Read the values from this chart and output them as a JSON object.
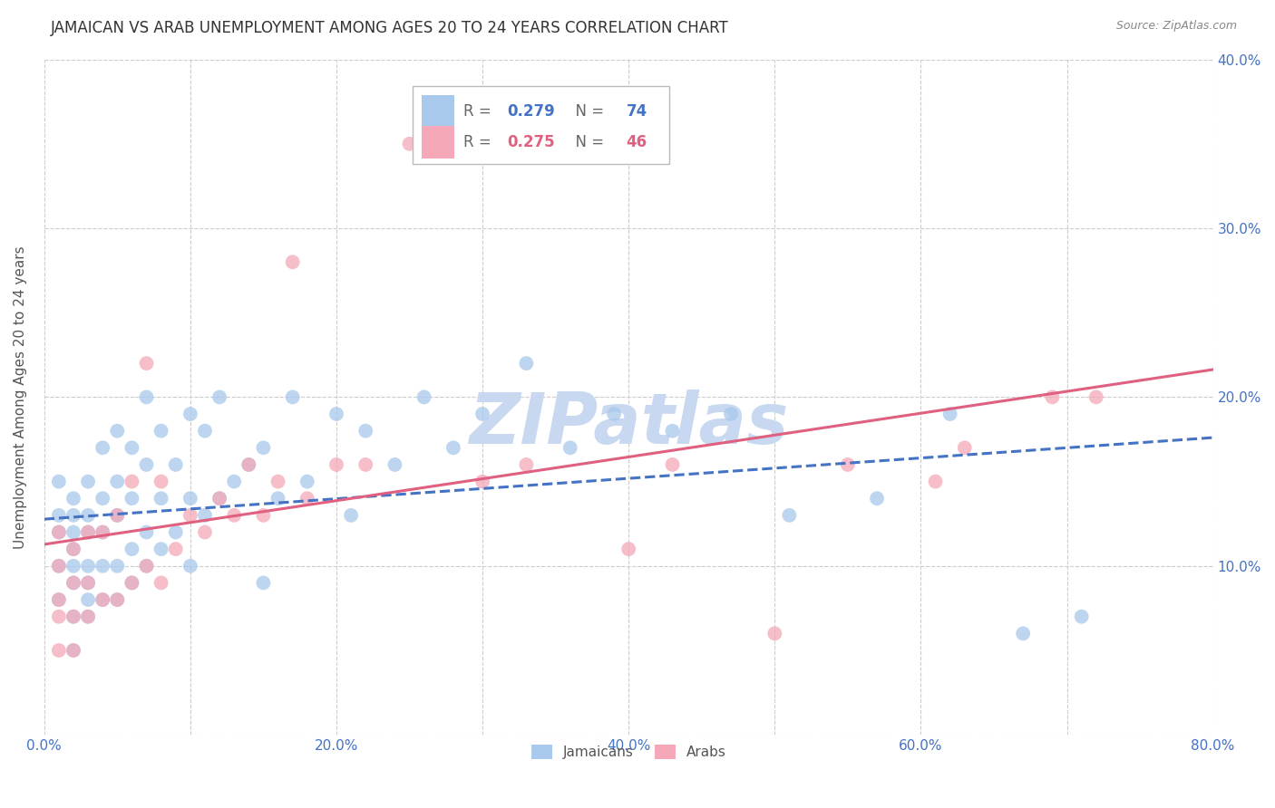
{
  "title": "JAMAICAN VS ARAB UNEMPLOYMENT AMONG AGES 20 TO 24 YEARS CORRELATION CHART",
  "source": "Source: ZipAtlas.com",
  "ylabel": "Unemployment Among Ages 20 to 24 years",
  "xlim": [
    0.0,
    0.8
  ],
  "ylim": [
    0.0,
    0.4
  ],
  "xticks": [
    0.0,
    0.1,
    0.2,
    0.3,
    0.4,
    0.5,
    0.6,
    0.7,
    0.8
  ],
  "yticks": [
    0.0,
    0.1,
    0.2,
    0.3,
    0.4
  ],
  "ytick_labels_right": [
    "",
    "10.0%",
    "20.0%",
    "30.0%",
    "40.0%"
  ],
  "xtick_labels": [
    "0.0%",
    "",
    "20.0%",
    "",
    "40.0%",
    "",
    "60.0%",
    "",
    "80.0%"
  ],
  "jamaican_color": "#A8C8EC",
  "arab_color": "#F4A8B8",
  "jamaican_line_color": "#4472C4",
  "arab_line_color": "#E06080",
  "R_jamaican": 0.279,
  "N_jamaican": 74,
  "R_arab": 0.275,
  "N_arab": 46,
  "watermark": "ZIPatlas",
  "watermark_color": "#C8D8F0",
  "background_color": "#FFFFFF",
  "grid_color": "#CCCCCC",
  "tick_label_color": "#4472C4",
  "jamaican_x": [
    0.01,
    0.01,
    0.01,
    0.01,
    0.01,
    0.02,
    0.02,
    0.02,
    0.02,
    0.02,
    0.02,
    0.02,
    0.02,
    0.03,
    0.03,
    0.03,
    0.03,
    0.03,
    0.03,
    0.03,
    0.04,
    0.04,
    0.04,
    0.04,
    0.04,
    0.05,
    0.05,
    0.05,
    0.05,
    0.05,
    0.06,
    0.06,
    0.06,
    0.06,
    0.07,
    0.07,
    0.07,
    0.07,
    0.08,
    0.08,
    0.08,
    0.09,
    0.09,
    0.1,
    0.1,
    0.1,
    0.11,
    0.11,
    0.12,
    0.12,
    0.13,
    0.14,
    0.15,
    0.15,
    0.16,
    0.17,
    0.18,
    0.2,
    0.21,
    0.22,
    0.24,
    0.26,
    0.28,
    0.3,
    0.33,
    0.36,
    0.39,
    0.43,
    0.47,
    0.51,
    0.57,
    0.62,
    0.67,
    0.71
  ],
  "jamaican_y": [
    0.08,
    0.1,
    0.12,
    0.13,
    0.15,
    0.05,
    0.07,
    0.09,
    0.1,
    0.11,
    0.12,
    0.13,
    0.14,
    0.07,
    0.08,
    0.09,
    0.1,
    0.12,
    0.13,
    0.15,
    0.08,
    0.1,
    0.12,
    0.14,
    0.17,
    0.08,
    0.1,
    0.13,
    0.15,
    0.18,
    0.09,
    0.11,
    0.14,
    0.17,
    0.1,
    0.12,
    0.16,
    0.2,
    0.11,
    0.14,
    0.18,
    0.12,
    0.16,
    0.1,
    0.14,
    0.19,
    0.13,
    0.18,
    0.14,
    0.2,
    0.15,
    0.16,
    0.09,
    0.17,
    0.14,
    0.2,
    0.15,
    0.19,
    0.13,
    0.18,
    0.16,
    0.2,
    0.17,
    0.19,
    0.22,
    0.17,
    0.19,
    0.18,
    0.19,
    0.13,
    0.14,
    0.19,
    0.06,
    0.07
  ],
  "arab_x": [
    0.01,
    0.01,
    0.01,
    0.01,
    0.01,
    0.02,
    0.02,
    0.02,
    0.02,
    0.03,
    0.03,
    0.03,
    0.04,
    0.04,
    0.05,
    0.05,
    0.06,
    0.06,
    0.07,
    0.07,
    0.08,
    0.08,
    0.09,
    0.1,
    0.11,
    0.12,
    0.13,
    0.14,
    0.15,
    0.16,
    0.17,
    0.18,
    0.2,
    0.22,
    0.25,
    0.28,
    0.3,
    0.33,
    0.4,
    0.43,
    0.5,
    0.55,
    0.61,
    0.63,
    0.69,
    0.72
  ],
  "arab_y": [
    0.05,
    0.07,
    0.08,
    0.1,
    0.12,
    0.05,
    0.07,
    0.09,
    0.11,
    0.07,
    0.09,
    0.12,
    0.08,
    0.12,
    0.08,
    0.13,
    0.09,
    0.15,
    0.1,
    0.22,
    0.09,
    0.15,
    0.11,
    0.13,
    0.12,
    0.14,
    0.13,
    0.16,
    0.13,
    0.15,
    0.28,
    0.14,
    0.16,
    0.16,
    0.35,
    0.35,
    0.15,
    0.16,
    0.11,
    0.16,
    0.06,
    0.16,
    0.15,
    0.17,
    0.2,
    0.2
  ]
}
